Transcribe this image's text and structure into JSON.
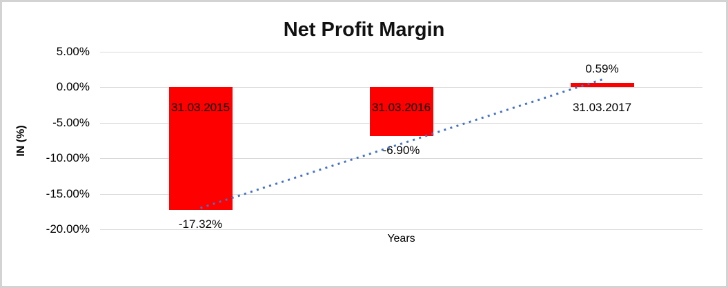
{
  "window": {
    "background_color": "#FFFFFF",
    "border_color": "#D3D3D3"
  },
  "chart_data": {
    "type": "bar",
    "title": "Net Profit Margin",
    "xlabel": "Years",
    "ylabel": "IN (%)",
    "categories": [
      "31.03.2015",
      "31.03.2016",
      "31.03.2017"
    ],
    "values": [
      -17.32,
      -6.9,
      0.59
    ],
    "value_labels": [
      "-17.32%",
      "-6.90%",
      "0.59%"
    ],
    "yticks": [
      {
        "value": 5,
        "label": "5.00%"
      },
      {
        "value": 0,
        "label": "0.00%"
      },
      {
        "value": -5,
        "label": "-5.00%"
      },
      {
        "value": -10,
        "label": "-10.00%"
      },
      {
        "value": -15,
        "label": "-15.00%"
      },
      {
        "value": -20,
        "label": "-20.00%"
      }
    ],
    "ylim": [
      -20,
      5
    ],
    "grid": true,
    "legend": "none",
    "bar_color": "#FF0000",
    "gridline_color": "#D9D9D9",
    "trendline": {
      "color": "#4472C4",
      "style": "dotted",
      "start": {
        "category_index": 0,
        "value": -17.0
      },
      "end": {
        "category_index": 2,
        "value": 1.1
      }
    }
  }
}
